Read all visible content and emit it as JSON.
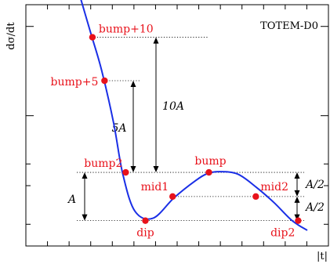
{
  "chart_data": {
    "type": "line",
    "title": "",
    "xlabel": "|t|",
    "ylabel": "dσ/dt",
    "corner_tag": "TOTEM-D0",
    "xlim": [
      0,
      10
    ],
    "ylim": [
      0,
      10
    ],
    "grid": false,
    "colors": {
      "curve": "#1a2fe6",
      "points": "#e8121b"
    },
    "curve": {
      "x": [
        1.8,
        2.15,
        2.5,
        2.9,
        3.2,
        3.6,
        4.2,
        4.9,
        5.6,
        6.0,
        6.4,
        7.0,
        7.6,
        8.2,
        8.8,
        9.3
      ],
      "y": [
        10.3,
        8.8,
        7.3,
        5.1,
        3.0,
        1.45,
        1.15,
        2.0,
        2.7,
        3.0,
        3.08,
        2.98,
        2.45,
        1.8,
        1.05,
        0.65
      ]
    },
    "points": [
      {
        "label": "bump+10",
        "x": 2.2,
        "y": 8.65
      },
      {
        "label": "bump+5",
        "x": 2.6,
        "y": 6.85
      },
      {
        "label": "bump2",
        "x": 3.3,
        "y": 3.05
      },
      {
        "label": "dip",
        "x": 3.95,
        "y": 1.05
      },
      {
        "label": "mid1",
        "x": 4.85,
        "y": 2.05
      },
      {
        "label": "bump",
        "x": 6.05,
        "y": 3.05
      },
      {
        "label": "mid2",
        "x": 7.6,
        "y": 2.05
      },
      {
        "label": "dip2",
        "x": 9.0,
        "y": 1.05
      }
    ],
    "annotations": {
      "A": "A",
      "five_A": "5A",
      "ten_A": "10A",
      "half_A_upper": "A/2",
      "half_A_lower": "A/2"
    }
  }
}
